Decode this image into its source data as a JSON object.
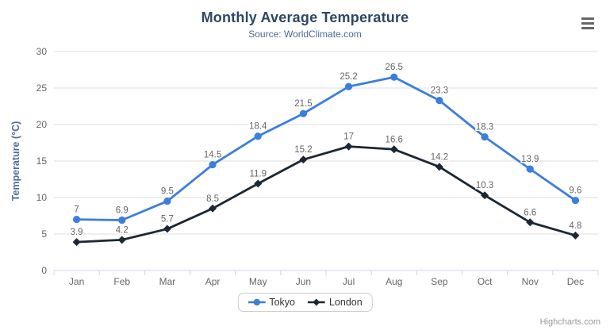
{
  "credits": "Highcharts.com",
  "menu": {
    "icon": "hamburger-menu-icon"
  },
  "chart_data": {
    "type": "line",
    "title": "Monthly Average Temperature",
    "subtitle": "Source: WorldClimate.com",
    "xlabel": "",
    "ylabel": "Temperature (°C)",
    "categories": [
      "Jan",
      "Feb",
      "Mar",
      "Apr",
      "May",
      "Jun",
      "Jul",
      "Aug",
      "Sep",
      "Oct",
      "Nov",
      "Dec"
    ],
    "series": [
      {
        "name": "Tokyo",
        "color": "#3b7edc",
        "marker": "circle",
        "values": [
          7,
          6.9,
          9.5,
          14.5,
          18.4,
          21.5,
          25.2,
          26.5,
          23.3,
          18.3,
          13.9,
          9.6
        ]
      },
      {
        "name": "London",
        "color": "#1b2734",
        "marker": "diamond",
        "values": [
          3.9,
          4.2,
          5.7,
          8.5,
          11.9,
          15.2,
          17,
          16.6,
          14.2,
          10.3,
          6.6,
          4.8
        ]
      }
    ],
    "ylim": [
      0,
      30
    ],
    "yticks": [
      0,
      5,
      10,
      15,
      20,
      25,
      30
    ],
    "grid": true,
    "data_labels": true,
    "legend_position": "bottom",
    "style": {
      "grid_color": "#dcdcdc",
      "axis_line_color": "#ccd6eb",
      "tick_label_color": "#666666",
      "data_label_color": "#666666",
      "title_color": "#2e4763",
      "subtitle_color": "#4d6a92",
      "axis_title_color": "#4e6e95"
    }
  }
}
